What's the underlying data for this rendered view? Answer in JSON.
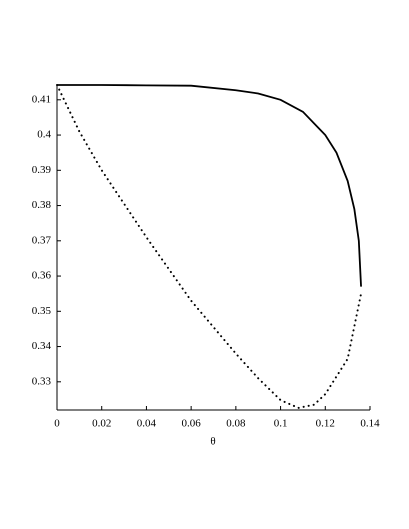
{
  "chart_data": {
    "type": "line",
    "x_label": "θ",
    "series": [
      {
        "style": "solid",
        "color": "#000000",
        "x": [
          0,
          0.02,
          0.04,
          0.06,
          0.08,
          0.09,
          0.1,
          0.11,
          0.12,
          0.125,
          0.13,
          0.133,
          0.135,
          0.136
        ],
        "values": [
          0.4142,
          0.4142,
          0.4141,
          0.414,
          0.4127,
          0.4118,
          0.41,
          0.4066,
          0.4,
          0.395,
          0.387,
          0.379,
          0.37,
          0.357
        ]
      },
      {
        "style": "dotted",
        "color": "#000000",
        "x": [
          0,
          0.01,
          0.02,
          0.04,
          0.06,
          0.08,
          0.09,
          0.1,
          0.108,
          0.115,
          0.12,
          0.13,
          0.136
        ],
        "values": [
          0.4142,
          0.401,
          0.39,
          0.371,
          0.353,
          0.338,
          0.331,
          0.3248,
          0.3226,
          0.3235,
          0.3265,
          0.3365,
          0.355
        ]
      }
    ],
    "xlim": [
      0,
      0.14
    ],
    "xticks": [
      0,
      0.02,
      0.04,
      0.06,
      0.08,
      0.1,
      0.12,
      0.14
    ],
    "ylim": [
      0.322,
      0.4142
    ],
    "yticks": [
      0.33,
      0.34,
      0.35,
      0.36,
      0.37,
      0.38,
      0.39,
      0.4,
      0.41
    ],
    "grid": false
  }
}
